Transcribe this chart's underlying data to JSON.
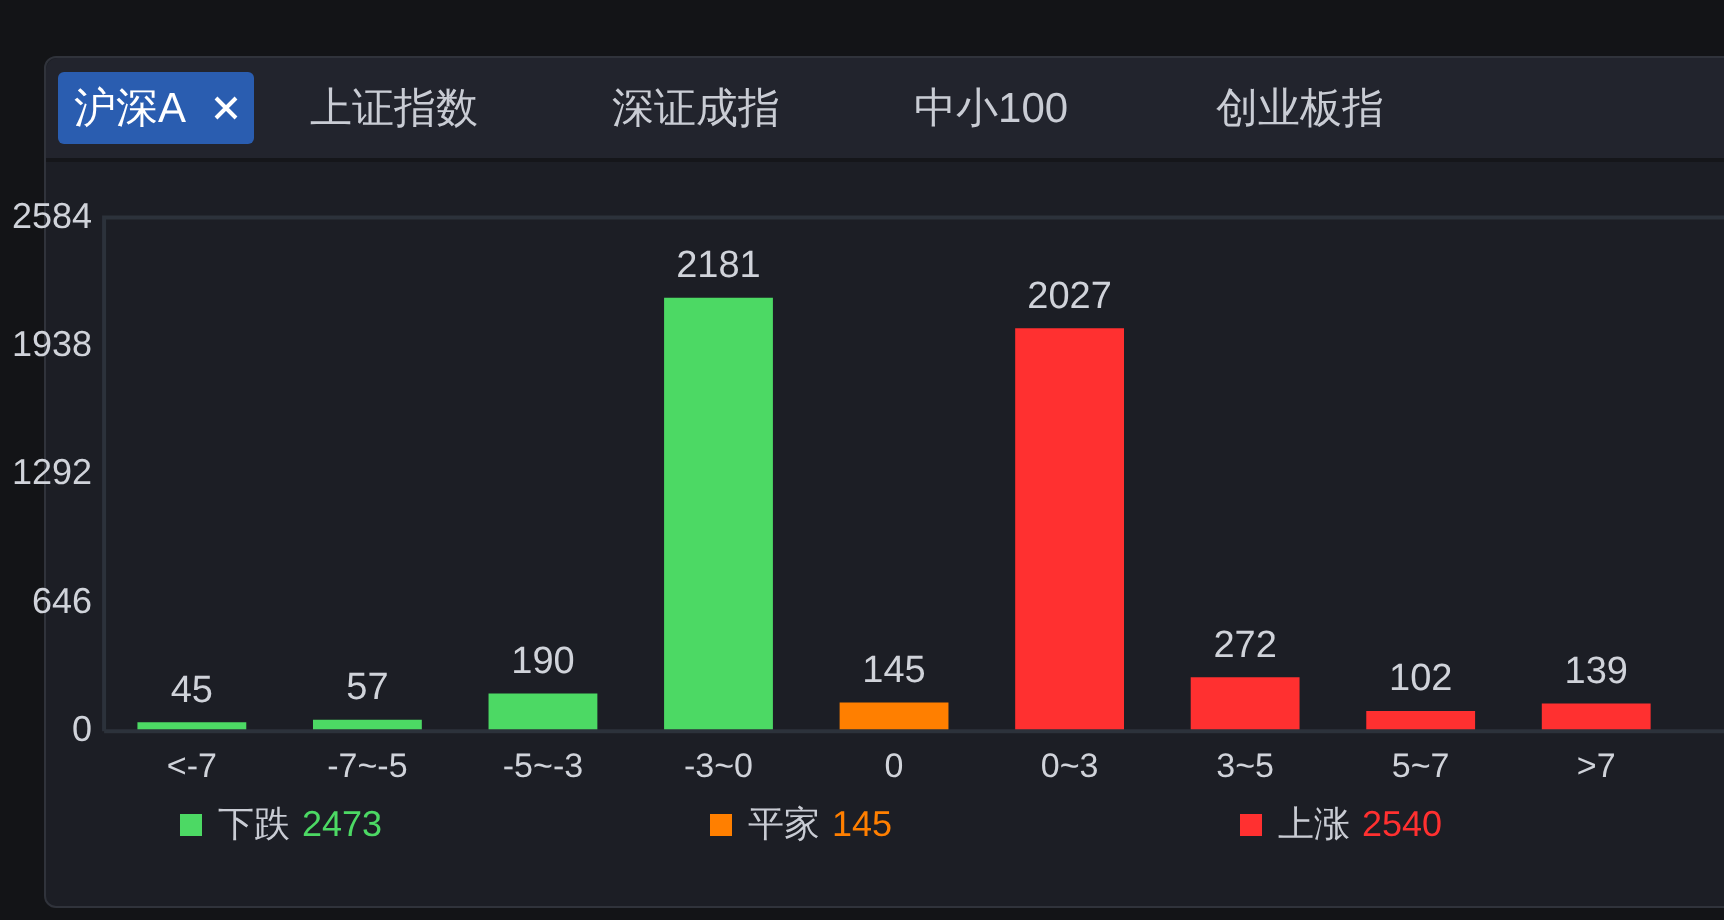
{
  "chart_data": {
    "type": "bar",
    "categories": [
      "<-7",
      "-7~-5",
      "-5~-3",
      "-3~0",
      "0",
      "0~3",
      "3~5",
      "5~7",
      ">7"
    ],
    "values": [
      45,
      57,
      190,
      2181,
      145,
      2027,
      272,
      102,
      139
    ],
    "colors": [
      "#4cd964",
      "#4cd964",
      "#4cd964",
      "#4cd964",
      "#ff7f00",
      "#ff3030",
      "#ff3030",
      "#ff3030",
      "#ff3030"
    ],
    "ylim": [
      0,
      2584
    ],
    "yticks": [
      0,
      646,
      1292,
      1938,
      2584
    ],
    "grid": false,
    "data_labels": true,
    "annotations": [
      "沪深A",
      "上证指数",
      "深证成指",
      "中小100",
      "创业板指",
      "下跌 2473",
      "平家 145",
      "上涨 2540"
    ]
  }
}
